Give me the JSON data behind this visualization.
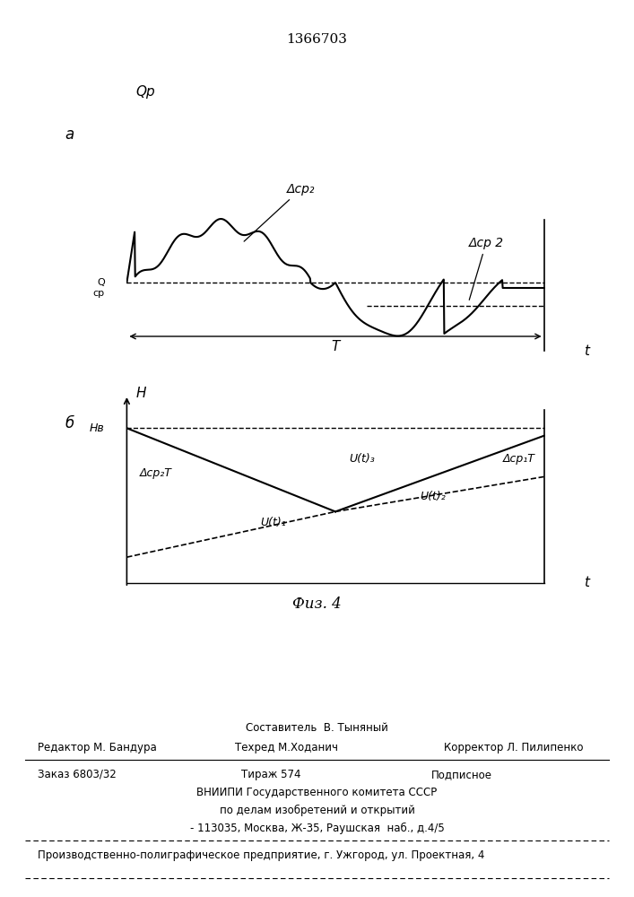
{
  "title": "1366703",
  "fig_caption": "Физ. 4",
  "panel_a_label": "a",
  "panel_b_label": "б",
  "panel_a_ylabel": "Qр",
  "panel_a_xlabel": "t",
  "panel_b_ylabel": "H",
  "panel_b_xlabel": "t",
  "Qср_label": "Q\nср",
  "Нв_label": "Hв",
  "T_label": "T",
  "dср2_label1": "Δcp₂",
  "dср2_label2": "Δcp 2",
  "dср2T_label": "Δcp₂T",
  "dср1T_label": "Δcp₁T",
  "ut1_label": "U(t)₁",
  "ut2_label": "U(t)₂",
  "ut3_label": "U(t)₃",
  "footer_sestavitel": "Составитель  В. Тыняный",
  "footer_redaktor": "Редактор М. Бандура",
  "footer_tehred": "Техред М.Ходанич",
  "footer_korrektor": "Корректор Л. Пилипенко",
  "footer_zakaz": "Заказ 6803/32",
  "footer_tirazh": "Тираж 574",
  "footer_podpisnoe": "Подписное",
  "footer_vniip1": "ВНИИПИ Государственного комитета СССР",
  "footer_vniip2": "по делам изобретений и открытий",
  "footer_vniip3": "- 113035, Москва, Ж-35, Раушская  наб., д.4/5",
  "footer_proizv": "Производственно-полиграфическое предприятие, г. Ужгород, ул. Проектная, 4"
}
